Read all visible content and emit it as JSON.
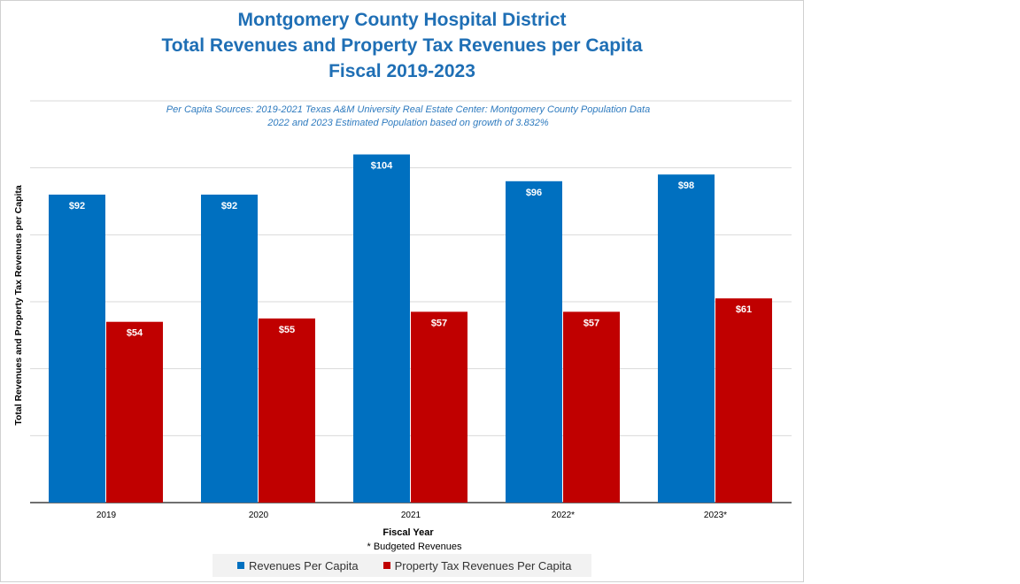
{
  "header": {
    "title_line1": "Montgomery County Hospital District",
    "title_line2": "Total Revenues and Property Tax Revenues per Capita",
    "title_line3": "Fiscal 2019-2023",
    "source_line1": "Per Capita Sources: 2019-2021 Texas A&M University Real Estate Center: Montgomery County Population Data",
    "source_line2": "2022 and 2023 Estimated Population based on growth of 3.832%"
  },
  "axes": {
    "ylabel": "Total Revenues and  Property Tax Revenues  per Capita",
    "xlabel": "Fiscal Year"
  },
  "footnote": "* Budgeted Revenues",
  "colors": {
    "revenues": "#0070c0",
    "property_tax": "#c00000",
    "title": "#1f6fb5"
  },
  "chart_data": {
    "type": "bar",
    "categories": [
      "2019",
      "2020",
      "2021",
      "2022*",
      "2023*"
    ],
    "series": [
      {
        "name": "Revenues Per Capita",
        "values": [
          92,
          92,
          104,
          96,
          98
        ],
        "labels": [
          "$92",
          "$92",
          "$104",
          "$96",
          "$98"
        ]
      },
      {
        "name": "Property Tax Revenues Per Capita",
        "values": [
          54,
          55,
          57,
          57,
          61
        ],
        "labels": [
          "$54",
          "$55",
          "$57",
          "$57",
          "$61"
        ]
      }
    ],
    "ylim": [
      0,
      120
    ],
    "grid": true,
    "legend": "bottom"
  }
}
